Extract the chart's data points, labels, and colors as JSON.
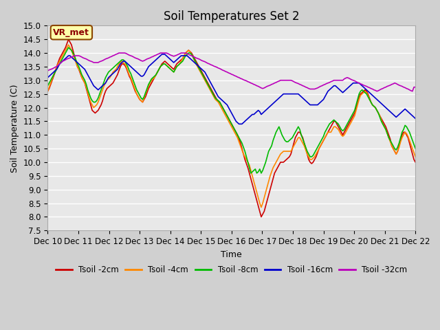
{
  "title": "Soil Temperatures Set 2",
  "xlabel": "Time",
  "ylabel": "Soil Temperature (C)",
  "ylim": [
    7.5,
    15.0
  ],
  "yticks": [
    7.5,
    8.0,
    8.5,
    9.0,
    9.5,
    10.0,
    10.5,
    11.0,
    11.5,
    12.0,
    12.5,
    13.0,
    13.5,
    14.0,
    14.5,
    15.0
  ],
  "legend_label": "VR_met",
  "series": [
    {
      "label": "Tsoil -2cm",
      "color": "#cc0000"
    },
    {
      "label": "Tsoil -4cm",
      "color": "#ff8800"
    },
    {
      "label": "Tsoil -8cm",
      "color": "#00bb00"
    },
    {
      "label": "Tsoil -16cm",
      "color": "#0000cc"
    },
    {
      "label": "Tsoil -32cm",
      "color": "#bb00bb"
    }
  ],
  "xticklabels": [
    "Dec 10",
    "Dec 11",
    "Dec 12",
    "Dec 13",
    "Dec 14",
    "Dec 15",
    "Dec 16",
    "Dec 17",
    "Dec 18",
    "Dec 19",
    "Dec 20",
    "Dec 21",
    "Dec 22"
  ],
  "t2cm": [
    12.6,
    12.7,
    12.85,
    13.0,
    13.15,
    13.3,
    13.5,
    13.65,
    13.8,
    13.9,
    14.0,
    14.1,
    14.2,
    14.35,
    14.5,
    14.4,
    14.3,
    14.1,
    13.9,
    13.7,
    13.5,
    13.4,
    13.25,
    13.1,
    13.0,
    12.9,
    12.7,
    12.5,
    12.3,
    12.1,
    11.9,
    11.85,
    11.8,
    11.85,
    11.9,
    12.0,
    12.1,
    12.25,
    12.45,
    12.6,
    12.7,
    12.75,
    12.8,
    12.85,
    12.9,
    13.0,
    13.1,
    13.2,
    13.35,
    13.5,
    13.6,
    13.6,
    13.55,
    13.45,
    13.3,
    13.15,
    13.05,
    12.9,
    12.75,
    12.6,
    12.5,
    12.4,
    12.3,
    12.25,
    12.2,
    12.3,
    12.4,
    12.55,
    12.7,
    12.8,
    12.9,
    13.0,
    13.1,
    13.2,
    13.3,
    13.4,
    13.5,
    13.6,
    13.65,
    13.7,
    13.65,
    13.6,
    13.55,
    13.5,
    13.45,
    13.4,
    13.5,
    13.6,
    13.65,
    13.7,
    13.75,
    13.8,
    13.9,
    14.0,
    14.05,
    14.1,
    14.05,
    14.0,
    13.9,
    13.8,
    13.7,
    13.6,
    13.5,
    13.4,
    13.3,
    13.2,
    13.1,
    13.0,
    12.9,
    12.8,
    12.7,
    12.6,
    12.5,
    12.4,
    12.3,
    12.25,
    12.2,
    12.1,
    12.0,
    11.9,
    11.8,
    11.7,
    11.6,
    11.5,
    11.4,
    11.3,
    11.2,
    11.1,
    11.0,
    10.85,
    10.7,
    10.5,
    10.3,
    10.1,
    9.95,
    9.8,
    9.6,
    9.4,
    9.2,
    9.0,
    8.8,
    8.6,
    8.4,
    8.2,
    8.0,
    8.1,
    8.2,
    8.4,
    8.6,
    8.8,
    9.0,
    9.2,
    9.4,
    9.6,
    9.7,
    9.8,
    9.9,
    10.0,
    10.0,
    10.0,
    10.05,
    10.1,
    10.15,
    10.2,
    10.3,
    10.5,
    10.7,
    10.9,
    11.0,
    11.1,
    11.1,
    11.0,
    10.9,
    10.7,
    10.5,
    10.3,
    10.1,
    10.0,
    9.95,
    10.0,
    10.1,
    10.2,
    10.35,
    10.5,
    10.6,
    10.7,
    10.8,
    10.9,
    11.0,
    11.1,
    11.2,
    11.3,
    11.4,
    11.5,
    11.5,
    11.4,
    11.3,
    11.2,
    11.1,
    11.0,
    11.1,
    11.2,
    11.3,
    11.4,
    11.5,
    11.6,
    11.7,
    11.8,
    12.0,
    12.2,
    12.4,
    12.5,
    12.55,
    12.6,
    12.65,
    12.6,
    12.5,
    12.35,
    12.2,
    12.1,
    12.05,
    12.0,
    11.9,
    11.8,
    11.7,
    11.6,
    11.5,
    11.4,
    11.3,
    11.15,
    11.0,
    10.85,
    10.6,
    10.5,
    10.4,
    10.3,
    10.4,
    10.6,
    10.8,
    11.0,
    11.1,
    11.1,
    11.0,
    10.9,
    10.7,
    10.5,
    10.3,
    10.1,
    10.0,
    9.9,
    9.85,
    9.8,
    9.75
  ],
  "t4cm": [
    12.6,
    12.75,
    12.9,
    13.05,
    13.2,
    13.35,
    13.5,
    13.6,
    13.7,
    13.8,
    13.9,
    14.0,
    14.1,
    14.2,
    14.3,
    14.2,
    14.1,
    13.95,
    13.8,
    13.65,
    13.5,
    13.4,
    13.3,
    13.1,
    13.0,
    12.9,
    12.75,
    12.55,
    12.35,
    12.2,
    12.1,
    12.0,
    12.05,
    12.1,
    12.2,
    12.35,
    12.5,
    12.65,
    12.8,
    12.9,
    13.0,
    13.05,
    13.1,
    13.2,
    13.3,
    13.35,
    13.4,
    13.5,
    13.6,
    13.65,
    13.7,
    13.65,
    13.6,
    13.5,
    13.35,
    13.2,
    13.1,
    12.95,
    12.8,
    12.65,
    12.5,
    12.4,
    12.3,
    12.25,
    12.2,
    12.35,
    12.5,
    12.65,
    12.8,
    12.9,
    13.0,
    13.05,
    13.1,
    13.2,
    13.3,
    13.4,
    13.5,
    13.55,
    13.6,
    13.6,
    13.55,
    13.5,
    13.45,
    13.4,
    13.35,
    13.3,
    13.4,
    13.5,
    13.55,
    13.6,
    13.7,
    13.8,
    13.9,
    14.0,
    14.05,
    14.1,
    14.05,
    13.95,
    13.85,
    13.7,
    13.6,
    13.5,
    13.4,
    13.3,
    13.2,
    13.1,
    13.0,
    12.9,
    12.8,
    12.7,
    12.6,
    12.5,
    12.4,
    12.3,
    12.25,
    12.2,
    12.1,
    12.0,
    11.9,
    11.8,
    11.7,
    11.6,
    11.5,
    11.4,
    11.3,
    11.2,
    11.1,
    11.0,
    10.9,
    10.75,
    10.6,
    10.45,
    10.3,
    10.2,
    10.1,
    10.0,
    9.9,
    9.7,
    9.5,
    9.3,
    9.1,
    8.9,
    8.7,
    8.5,
    8.35,
    8.5,
    8.7,
    8.9,
    9.1,
    9.3,
    9.5,
    9.65,
    9.8,
    9.9,
    10.0,
    10.1,
    10.2,
    10.3,
    10.35,
    10.4,
    10.4,
    10.4,
    10.4,
    10.4,
    10.4,
    10.5,
    10.6,
    10.7,
    10.8,
    10.9,
    10.9,
    10.8,
    10.7,
    10.6,
    10.45,
    10.3,
    10.2,
    10.1,
    10.1,
    10.15,
    10.2,
    10.3,
    10.4,
    10.5,
    10.6,
    10.7,
    10.8,
    10.9,
    11.0,
    11.1,
    11.1,
    11.1,
    11.2,
    11.3,
    11.3,
    11.25,
    11.2,
    11.1,
    11.0,
    10.95,
    11.0,
    11.1,
    11.2,
    11.3,
    11.4,
    11.5,
    11.6,
    11.7,
    11.9,
    12.1,
    12.3,
    12.45,
    12.5,
    12.55,
    12.6,
    12.55,
    12.45,
    12.3,
    12.2,
    12.1,
    12.05,
    12.0,
    11.9,
    11.8,
    11.7,
    11.55,
    11.4,
    11.3,
    11.2,
    11.05,
    10.9,
    10.75,
    10.6,
    10.5,
    10.4,
    10.3,
    10.4,
    10.55,
    10.75,
    10.9,
    11.0,
    11.1,
    11.05,
    10.95,
    10.8,
    10.65,
    10.5,
    10.35,
    10.2,
    10.1,
    10.05,
    10.15,
    10.25
  ],
  "t8cm": [
    12.8,
    12.9,
    13.0,
    13.1,
    13.2,
    13.3,
    13.4,
    13.5,
    13.6,
    13.7,
    13.8,
    13.9,
    14.0,
    14.1,
    14.2,
    14.15,
    14.1,
    14.0,
    13.9,
    13.75,
    13.6,
    13.5,
    13.35,
    13.2,
    13.1,
    13.0,
    12.85,
    12.65,
    12.5,
    12.35,
    12.25,
    12.2,
    12.2,
    12.25,
    12.35,
    12.5,
    12.65,
    12.8,
    12.95,
    13.1,
    13.2,
    13.3,
    13.35,
    13.4,
    13.45,
    13.5,
    13.55,
    13.6,
    13.65,
    13.7,
    13.75,
    13.75,
    13.7,
    13.6,
    13.5,
    13.35,
    13.25,
    13.1,
    12.95,
    12.8,
    12.65,
    12.55,
    12.45,
    12.35,
    12.3,
    12.4,
    12.55,
    12.7,
    12.85,
    12.95,
    13.05,
    13.1,
    13.15,
    13.2,
    13.3,
    13.4,
    13.5,
    13.55,
    13.6,
    13.6,
    13.55,
    13.5,
    13.45,
    13.4,
    13.35,
    13.3,
    13.4,
    13.5,
    13.55,
    13.6,
    13.65,
    13.7,
    13.8,
    13.9,
    13.95,
    14.0,
    14.0,
    13.95,
    13.85,
    13.75,
    13.65,
    13.55,
    13.45,
    13.35,
    13.25,
    13.15,
    13.05,
    12.95,
    12.85,
    12.75,
    12.65,
    12.55,
    12.45,
    12.35,
    12.3,
    12.25,
    12.2,
    12.1,
    12.0,
    11.9,
    11.8,
    11.7,
    11.6,
    11.5,
    11.4,
    11.3,
    11.2,
    11.1,
    11.0,
    10.9,
    10.8,
    10.7,
    10.55,
    10.4,
    10.2,
    10.0,
    9.8,
    9.6,
    9.65,
    9.7,
    9.75,
    9.6,
    9.65,
    9.75,
    9.6,
    9.7,
    9.85,
    10.0,
    10.2,
    10.4,
    10.5,
    10.6,
    10.8,
    10.95,
    11.1,
    11.2,
    11.3,
    11.15,
    11.0,
    10.9,
    10.8,
    10.75,
    10.75,
    10.8,
    10.85,
    10.9,
    11.0,
    11.1,
    11.2,
    11.3,
    11.2,
    11.0,
    10.85,
    10.7,
    10.55,
    10.4,
    10.3,
    10.2,
    10.2,
    10.25,
    10.35,
    10.45,
    10.55,
    10.65,
    10.75,
    10.85,
    10.95,
    11.1,
    11.2,
    11.3,
    11.4,
    11.45,
    11.5,
    11.55,
    11.5,
    11.45,
    11.4,
    11.3,
    11.2,
    11.15,
    11.2,
    11.3,
    11.4,
    11.5,
    11.6,
    11.7,
    11.8,
    11.9,
    12.1,
    12.3,
    12.5,
    12.6,
    12.65,
    12.6,
    12.55,
    12.5,
    12.4,
    12.3,
    12.2,
    12.1,
    12.05,
    12.0,
    11.9,
    11.8,
    11.65,
    11.5,
    11.4,
    11.3,
    11.2,
    11.05,
    10.9,
    10.8,
    10.7,
    10.6,
    10.5,
    10.45,
    10.55,
    10.7,
    10.9,
    11.1,
    11.2,
    11.35,
    11.3,
    11.2,
    11.1,
    10.95,
    10.8,
    10.65,
    10.5,
    10.4,
    10.35,
    10.45,
    10.5
  ],
  "t16cm": [
    13.1,
    13.15,
    13.2,
    13.25,
    13.3,
    13.35,
    13.4,
    13.5,
    13.6,
    13.65,
    13.7,
    13.75,
    13.8,
    13.85,
    13.9,
    13.9,
    13.85,
    13.8,
    13.75,
    13.7,
    13.65,
    13.6,
    13.55,
    13.5,
    13.45,
    13.4,
    13.3,
    13.2,
    13.1,
    13.0,
    12.9,
    12.8,
    12.75,
    12.7,
    12.65,
    12.7,
    12.75,
    12.8,
    12.85,
    12.9,
    13.0,
    13.1,
    13.15,
    13.2,
    13.25,
    13.3,
    13.35,
    13.4,
    13.5,
    13.6,
    13.65,
    13.7,
    13.7,
    13.65,
    13.6,
    13.55,
    13.5,
    13.45,
    13.4,
    13.35,
    13.3,
    13.25,
    13.2,
    13.15,
    13.15,
    13.2,
    13.3,
    13.4,
    13.5,
    13.55,
    13.6,
    13.65,
    13.7,
    13.75,
    13.8,
    13.85,
    13.9,
    13.95,
    13.95,
    13.95,
    13.9,
    13.85,
    13.8,
    13.75,
    13.7,
    13.65,
    13.7,
    13.75,
    13.8,
    13.85,
    13.9,
    13.9,
    13.9,
    13.9,
    13.9,
    13.85,
    13.8,
    13.75,
    13.7,
    13.65,
    13.6,
    13.55,
    13.5,
    13.45,
    13.4,
    13.35,
    13.3,
    13.2,
    13.1,
    13.0,
    12.9,
    12.8,
    12.7,
    12.6,
    12.5,
    12.4,
    12.35,
    12.3,
    12.25,
    12.2,
    12.15,
    12.1,
    12.0,
    11.9,
    11.8,
    11.7,
    11.6,
    11.5,
    11.45,
    11.4,
    11.4,
    11.4,
    11.45,
    11.5,
    11.55,
    11.6,
    11.65,
    11.7,
    11.75,
    11.75,
    11.8,
    11.85,
    11.9,
    11.85,
    11.75,
    11.8,
    11.85,
    11.9,
    11.95,
    12.0,
    12.05,
    12.1,
    12.15,
    12.2,
    12.25,
    12.3,
    12.35,
    12.4,
    12.45,
    12.5,
    12.5,
    12.5,
    12.5,
    12.5,
    12.5,
    12.5,
    12.5,
    12.5,
    12.5,
    12.5,
    12.45,
    12.4,
    12.35,
    12.3,
    12.25,
    12.2,
    12.15,
    12.1,
    12.1,
    12.1,
    12.1,
    12.1,
    12.1,
    12.15,
    12.2,
    12.25,
    12.3,
    12.4,
    12.5,
    12.6,
    12.65,
    12.7,
    12.75,
    12.8,
    12.8,
    12.75,
    12.7,
    12.65,
    12.6,
    12.55,
    12.6,
    12.65,
    12.7,
    12.75,
    12.8,
    12.85,
    12.9,
    12.9,
    12.9,
    12.9,
    12.9,
    12.85,
    12.8,
    12.75,
    12.7,
    12.65,
    12.6,
    12.55,
    12.5,
    12.45,
    12.4,
    12.35,
    12.3,
    12.25,
    12.2,
    12.15,
    12.1,
    12.05,
    12.0,
    11.95,
    11.9,
    11.85,
    11.8,
    11.75,
    11.7,
    11.65,
    11.7,
    11.75,
    11.8,
    11.85,
    11.9,
    11.95,
    11.9,
    11.85,
    11.8,
    11.75,
    11.7,
    11.65,
    11.6,
    11.55,
    11.5,
    11.95,
    11.95
  ],
  "t32cm": [
    13.35,
    13.38,
    13.4,
    13.42,
    13.45,
    13.48,
    13.5,
    13.55,
    13.6,
    13.65,
    13.7,
    13.72,
    13.75,
    13.78,
    13.8,
    13.82,
    13.85,
    13.87,
    13.9,
    13.9,
    13.9,
    13.9,
    13.88,
    13.85,
    13.82,
    13.8,
    13.78,
    13.75,
    13.72,
    13.7,
    13.68,
    13.65,
    13.65,
    13.65,
    13.65,
    13.68,
    13.7,
    13.72,
    13.75,
    13.78,
    13.8,
    13.82,
    13.85,
    13.87,
    13.9,
    13.92,
    13.95,
    13.97,
    14.0,
    14.0,
    14.0,
    14.0,
    14.0,
    13.98,
    13.95,
    13.92,
    13.9,
    13.88,
    13.85,
    13.82,
    13.8,
    13.78,
    13.75,
    13.72,
    13.7,
    13.72,
    13.75,
    13.78,
    13.8,
    13.82,
    13.85,
    13.87,
    13.9,
    13.92,
    13.95,
    13.97,
    14.0,
    14.0,
    14.0,
    14.0,
    14.0,
    13.98,
    13.95,
    13.92,
    13.9,
    13.88,
    13.9,
    13.92,
    13.95,
    13.97,
    14.0,
    14.0,
    14.0,
    14.0,
    13.98,
    13.95,
    13.92,
    13.9,
    13.87,
    13.85,
    13.82,
    13.8,
    13.78,
    13.75,
    13.72,
    13.7,
    13.68,
    13.65,
    13.62,
    13.6,
    13.57,
    13.55,
    13.52,
    13.5,
    13.48,
    13.45,
    13.43,
    13.4,
    13.37,
    13.35,
    13.32,
    13.3,
    13.27,
    13.25,
    13.22,
    13.2,
    13.17,
    13.15,
    13.12,
    13.1,
    13.07,
    13.05,
    13.02,
    13.0,
    12.98,
    12.95,
    12.93,
    12.9,
    12.88,
    12.85,
    12.83,
    12.8,
    12.78,
    12.75,
    12.72,
    12.7,
    12.72,
    12.75,
    12.78,
    12.8,
    12.82,
    12.85,
    12.87,
    12.9,
    12.92,
    12.95,
    12.97,
    13.0,
    13.0,
    13.0,
    13.0,
    13.0,
    13.0,
    13.0,
    13.0,
    12.98,
    12.95,
    12.92,
    12.9,
    12.88,
    12.85,
    12.83,
    12.8,
    12.78,
    12.75,
    12.73,
    12.7,
    12.68,
    12.68,
    12.68,
    12.68,
    12.7,
    12.72,
    12.75,
    12.78,
    12.8,
    12.83,
    12.85,
    12.88,
    12.9,
    12.92,
    12.95,
    12.97,
    13.0,
    13.0,
    13.0,
    13.0,
    13.0,
    13.0,
    13.0,
    13.05,
    13.08,
    13.1,
    13.08,
    13.05,
    13.02,
    13.0,
    12.98,
    12.95,
    12.92,
    12.9,
    12.87,
    12.85,
    12.82,
    12.8,
    12.78,
    12.75,
    12.73,
    12.7,
    12.68,
    12.65,
    12.63,
    12.6,
    12.62,
    12.65,
    12.68,
    12.7,
    12.73,
    12.75,
    12.78,
    12.8,
    12.82,
    12.85,
    12.87,
    12.9,
    12.88,
    12.85,
    12.82,
    12.8,
    12.78,
    12.75,
    12.73,
    12.7,
    12.68,
    12.65,
    12.62,
    12.6,
    12.75,
    12.75
  ]
}
